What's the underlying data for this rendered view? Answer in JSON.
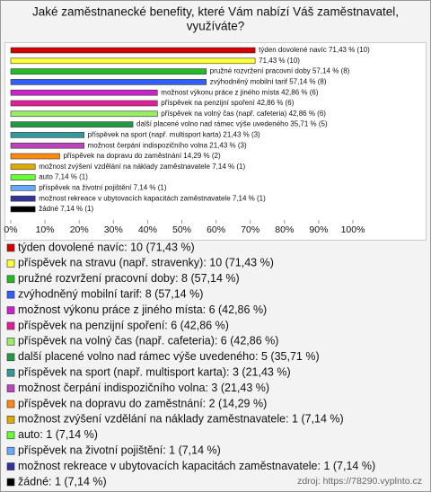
{
  "chart_data": {
    "type": "hbar",
    "title_lines": [
      "Jaké zaměstnanecké benefity, které Vám nabízí Váš zaměstnavatel,",
      "využíváte?"
    ],
    "values": [
      71.43,
      71.43,
      57.14,
      57.14,
      42.86,
      42.86,
      42.86,
      35.71,
      21.43,
      21.43,
      14.29,
      7.14,
      7.14,
      7.14,
      7.14,
      7.14
    ],
    "value_labels": [
      "týden dovolené navíc 71,43 % (10)",
      "71,43 % (10)",
      "pružné rozvržení pracovní doby 57,14 % (8)",
      "zvýhodněný mobilní tarif 57,14 % (8)",
      "možnost výkonu práce z jiného místa 42,86 % (6)",
      "příspěvek na penzijní spoření 42,86 % (6)",
      "příspěvek na volný čas (např. cafeteria) 42,86 % (6)",
      "další placené volno nad rámec výše uvedeného 35,71 % (5)",
      "příspěvek na sport (např. multisport karta) 21,43 % (3)",
      "možnost čerpání indispozičního volna 21,43 % (3)",
      "příspěvek na dopravu do zaměstnání 14,29 % (2)",
      "možnost zvýšení vzdělání na náklady zaměstnavatele 7,14 % (1)",
      "auto 7,14 % (1)",
      "příspěvek na životní pojištění 7,14 % (1)",
      "možnost rekreace v ubytovacích kapacitách zaměstnavatele 7,14 % (1)",
      "žádné 7,14 % (1)"
    ],
    "legend_labels": [
      "týden dovolené navíc: 10 (71,43 %)",
      "příspěvek na stravu (např. stravenky): 10 (71,43 %)",
      "pružné rozvržení pracovní doby: 8 (57,14 %)",
      "zvýhodněný mobilní tarif: 8 (57,14 %)",
      "možnost výkonu práce z jiného místa: 6 (42,86 %)",
      "příspěvek na penzijní spoření: 6 (42,86 %)",
      "příspěvek na volný čas (např. cafeteria): 6 (42,86 %)",
      "další placené volno nad rámec výše uvedeného: 5 (35,71 %)",
      "příspěvek na sport (např. multisport karta): 3 (21,43 %)",
      "možnost čerpání indispozičního volna: 3 (21,43 %)",
      "příspěvek na dopravu do zaměstnání: 2 (14,29 %)",
      "možnost zvýšení vzdělání na náklady zaměstnavatele: 1 (7,14 %)",
      "auto: 1 (7,14 %)",
      "příspěvek na životní pojištění: 1 (7,14 %)",
      "možnost rekreace v ubytovacích kapacitách zaměstnavatele: 1 (7,14 %)",
      "žádné: 1 (7,14 %)"
    ],
    "colors": [
      "#d40000",
      "#ffff33",
      "#22bb22",
      "#3060ff",
      "#cc22cc",
      "#e0209a",
      "#99ee66",
      "#229944",
      "#339999",
      "#bb44bb",
      "#ff8811",
      "#ddaa00",
      "#66ff33",
      "#66aaff",
      "#333399",
      "#000000"
    ],
    "xlim": [
      0,
      100
    ],
    "xticks": [
      {
        "value": 0,
        "label": "0%"
      },
      {
        "value": 10,
        "label": "10%"
      },
      {
        "value": 20,
        "label": "20%"
      },
      {
        "value": 30,
        "label": "30%"
      },
      {
        "value": 40,
        "label": "40%"
      },
      {
        "value": 50,
        "label": "50%"
      },
      {
        "value": 60,
        "label": "60%"
      },
      {
        "value": 70,
        "label": "70%"
      },
      {
        "value": 80,
        "label": "80%"
      },
      {
        "value": 90,
        "label": "90%"
      },
      {
        "value": 100,
        "label": "100%"
      }
    ],
    "source": "zdroj: https://78290.vyplnto.cz"
  }
}
